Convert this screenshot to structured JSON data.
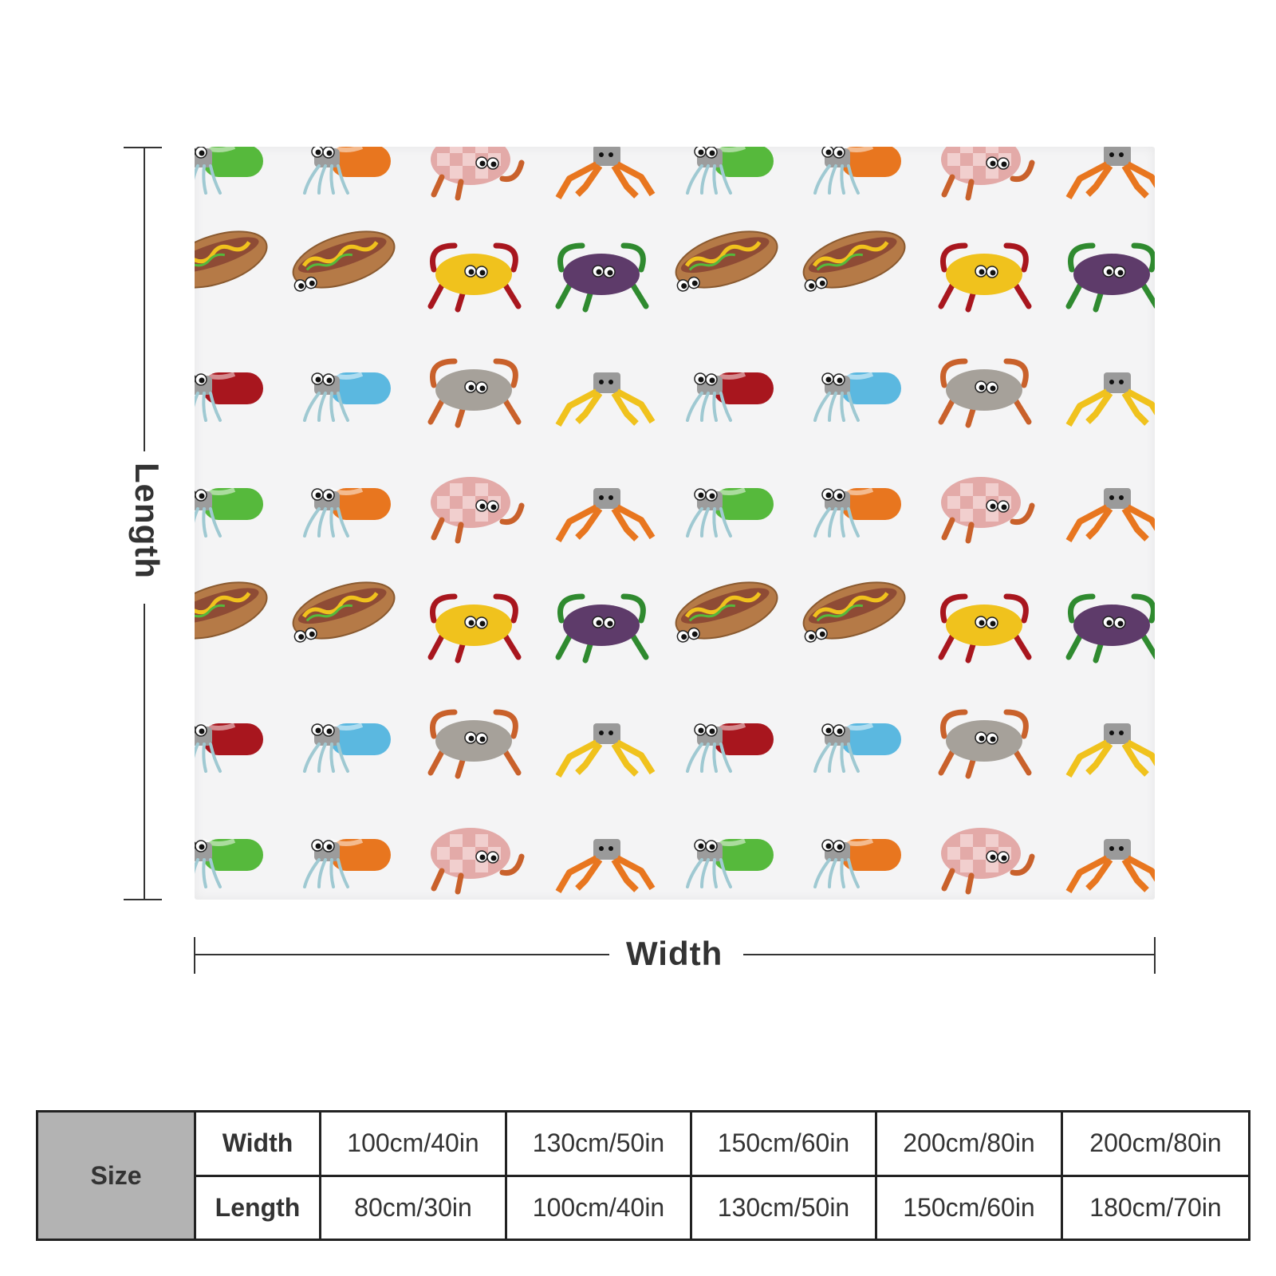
{
  "diagram": {
    "width_label": "Width",
    "length_label": "Length"
  },
  "pattern": {
    "background": "#f4f4f5",
    "motifs": [
      "hermit-crab-icon",
      "hot-dog-crab-icon",
      "spider-crab-icon",
      "beetle-crab-icon"
    ],
    "colors": {
      "orange": "#e8761f",
      "rust": "#c9612b",
      "bun": "#b57a47",
      "sausage": "#8e4b35",
      "yellow": "#f0c21d",
      "green": "#56b93c",
      "red": "#a8161e",
      "blue": "#5bb8e0",
      "purple": "#5e3b6a",
      "grey": "#a6a19a",
      "checker": "#e3aaa8"
    }
  },
  "size_table": {
    "header": "Size",
    "width_label": "Width",
    "length_label": "Length",
    "widths": [
      "100cm/40in",
      "130cm/50in",
      "150cm/60in",
      "200cm/80in",
      "200cm/80in"
    ],
    "lengths": [
      "80cm/30in",
      "100cm/40in",
      "130cm/50in",
      "150cm/60in",
      "180cm/70in"
    ]
  }
}
